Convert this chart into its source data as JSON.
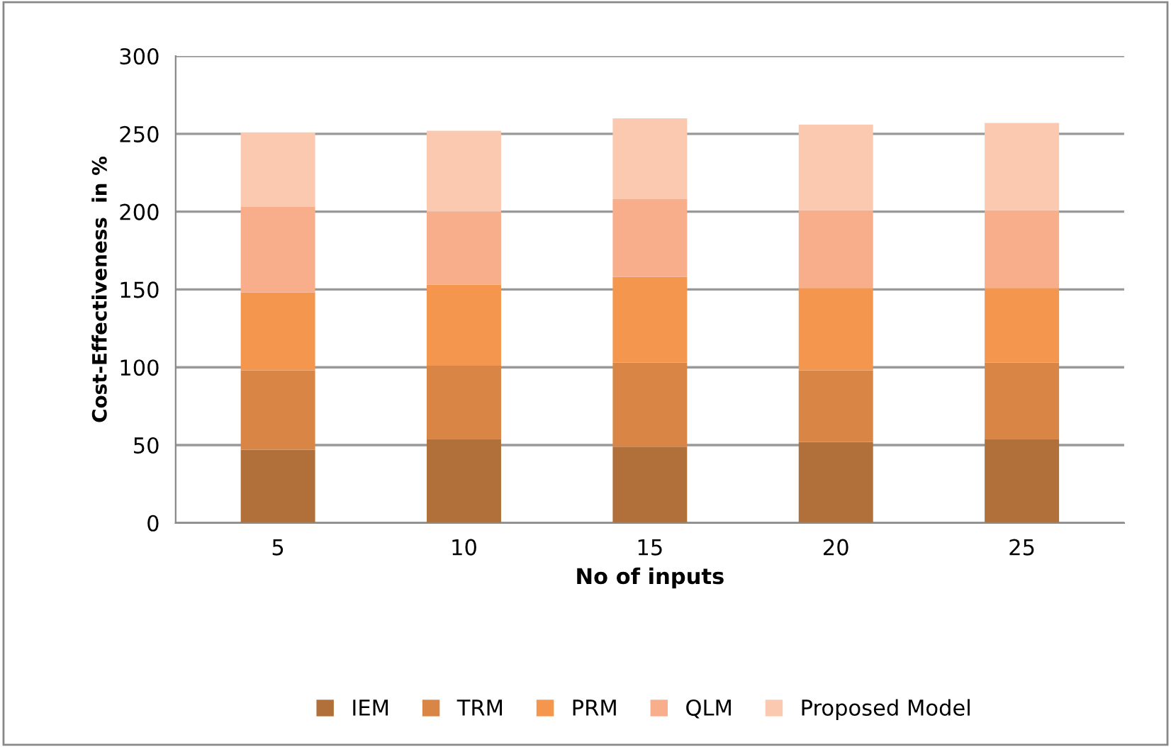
{
  "chart_data": {
    "type": "bar",
    "stacked": true,
    "xlabel": "No of inputs",
    "ylabel": "Cost-Effectiveness  in %",
    "categories": [
      "5",
      "10",
      "15",
      "20",
      "25"
    ],
    "series": [
      {
        "name": "IEM",
        "color": "#b1703a",
        "values": [
          47,
          54,
          49,
          52,
          54
        ]
      },
      {
        "name": "TRM",
        "color": "#d98545",
        "values": [
          51,
          47,
          54,
          46,
          49
        ]
      },
      {
        "name": "PRM",
        "color": "#f5964f",
        "values": [
          50,
          52,
          55,
          53,
          48
        ]
      },
      {
        "name": "QLM",
        "color": "#f8ae8a",
        "values": [
          55,
          47,
          50,
          50,
          50
        ]
      },
      {
        "name": "Proposed Model",
        "color": "#fbc9b0",
        "values": [
          48,
          52,
          52,
          55,
          56
        ]
      }
    ],
    "ylim": [
      0,
      300
    ],
    "yticks": [
      0,
      50,
      100,
      150,
      200,
      250,
      300
    ],
    "grid": "y",
    "legend": "bottom"
  }
}
